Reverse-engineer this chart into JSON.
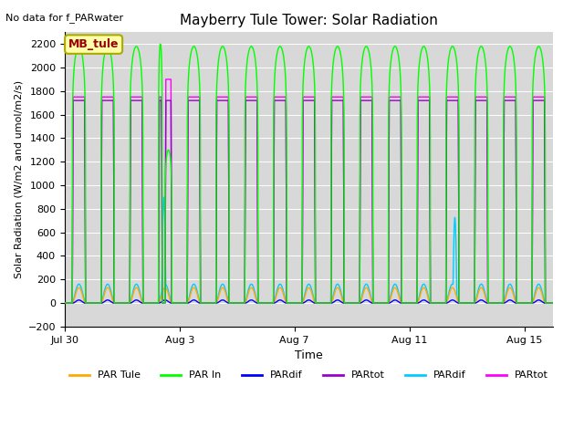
{
  "title": "Mayberry Tule Tower: Solar Radiation",
  "no_data_text": "No data for f_PARwater",
  "xlabel": "Time",
  "ylabel": "Solar Radiation (W/m2 and umol/m2/s)",
  "ylim": [
    -200,
    2300
  ],
  "yticks": [
    -200,
    0,
    200,
    400,
    600,
    800,
    1000,
    1200,
    1400,
    1600,
    1800,
    2000,
    2200
  ],
  "n_days": 17,
  "n_points_per_day": 288,
  "bg_color": "#d8d8d8",
  "legend_entries": [
    "PAR Tule",
    "PAR In",
    "PARdif",
    "PARtot",
    "PARdif",
    "PARtot"
  ],
  "legend_colors": [
    "#ffaa00",
    "#00ff00",
    "#0000ff",
    "#9900cc",
    "#00ccff",
    "#ff00ff"
  ],
  "annotation_text": "MB_tule",
  "annotation_box_color": "#ffffaa",
  "annotation_text_color": "#990000",
  "xtick_labels": [
    "Jul 30",
    "Aug 3",
    "Aug 7",
    "Aug 11",
    "Aug 15"
  ],
  "xtick_positions": [
    0,
    4,
    8,
    12,
    16
  ]
}
